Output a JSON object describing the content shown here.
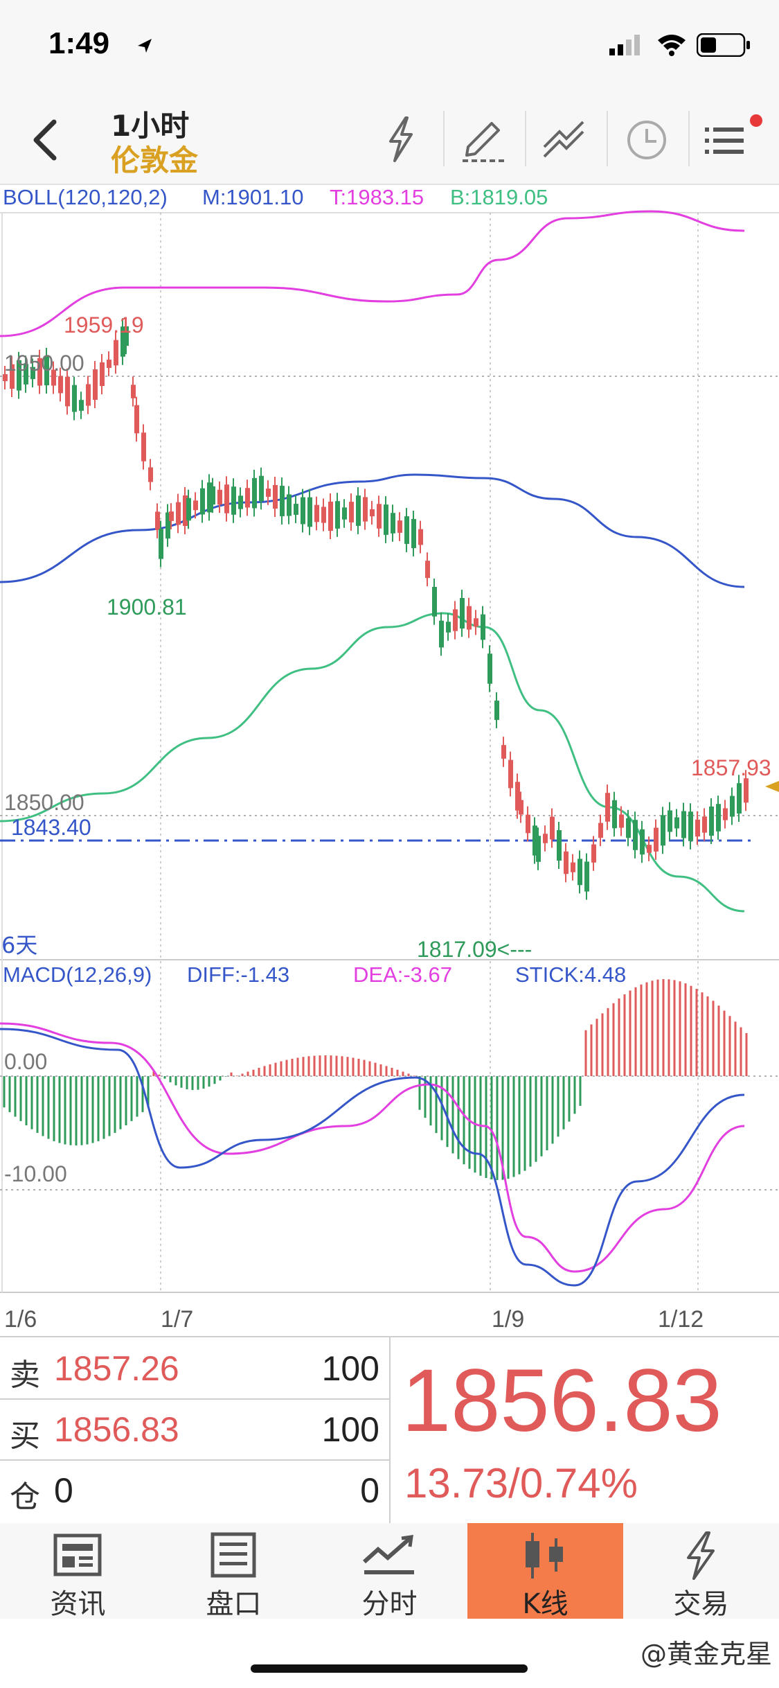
{
  "status_bar": {
    "time": "1:49"
  },
  "nav": {
    "title_line1": "1小时",
    "title_line2": "伦敦金",
    "icons": [
      "back-icon",
      "lightning-icon",
      "draw-pen-icon",
      "trend-line-icon",
      "clock-icon",
      "menu-icon"
    ]
  },
  "chart": {
    "boll": {
      "name": "BOLL(120,120,2)",
      "m": "M:1901.10",
      "t": "T:1983.15",
      "b": "B:1819.05"
    },
    "price_labels": {
      "high_mark": "1959.19",
      "grid_1950": "1950.00",
      "low_mark": "1900.81",
      "grid_1850": "1850.00",
      "current_line": "1843.40",
      "last_mark": "1857.93",
      "low2_mark": "1817.09<---",
      "period": "6天"
    },
    "macd": {
      "name": "MACD(12,26,9)",
      "diff": "DIFF:-1.43",
      "dea": "DEA:-3.67",
      "stick": "STICK:4.48",
      "zero": "0.00",
      "neg10": "-10.00"
    },
    "dates": [
      "1/6",
      "1/7",
      "1/9",
      "1/12"
    ],
    "colors": {
      "up": "#e05a5a",
      "down": "#2e9b5a",
      "boll_upper": "#e23ee0",
      "boll_mid": "#3556c8",
      "boll_lower": "#3fbf82",
      "dea": "#e23ee0",
      "diff": "#3556c8"
    }
  },
  "quote": {
    "sell_label": "卖",
    "sell_price": "1857.26",
    "sell_vol": "100",
    "buy_label": "买",
    "buy_price": "1856.83",
    "buy_vol": "100",
    "pos_label": "仓",
    "pos_value": "0",
    "pos_vol": "0",
    "last_price": "1856.83",
    "change": "13.73/0.74%"
  },
  "tabs": [
    {
      "label": "资讯",
      "icon": "news-icon"
    },
    {
      "label": "盘口",
      "icon": "orderbook-icon"
    },
    {
      "label": "分时",
      "icon": "timeshare-icon"
    },
    {
      "label": "K线",
      "icon": "candlestick-icon"
    },
    {
      "label": "交易",
      "icon": "trade-icon"
    }
  ],
  "watermark": "@黄金克星"
}
